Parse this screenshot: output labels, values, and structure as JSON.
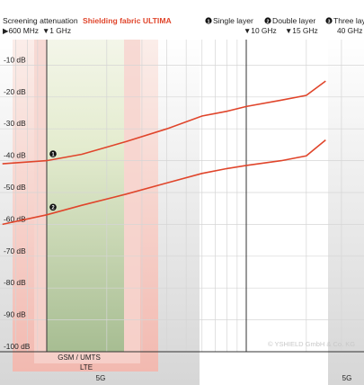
{
  "header": {
    "title_prefix": "Screening attenuation",
    "title_product": "Shielding fabric ULTIMA",
    "legend_single": "Single layer",
    "legend_double": "Double layer",
    "legend_three": "Three laye",
    "legend_marker_1": "1",
    "legend_marker_2": "2",
    "legend_marker_3": "3"
  },
  "frequency_markers": [
    {
      "label": "600 MHz",
      "freq_mhz": 600,
      "glyph": "▶"
    },
    {
      "label": "1 GHz",
      "freq_mhz": 1000,
      "glyph": "▼"
    },
    {
      "label": "10 GHz",
      "freq_mhz": 10000,
      "glyph": "▼"
    },
    {
      "label": "15 GHz",
      "freq_mhz": 15000,
      "glyph": "▼"
    },
    {
      "label": "40 GHz",
      "freq_mhz": 40000,
      "glyph": ""
    }
  ],
  "bands": [
    {
      "label": "GSM / UMTS",
      "color": "#f4c8c2"
    },
    {
      "label": "LTE",
      "color": "#b6c9a0"
    },
    {
      "label": "5G",
      "color": "#dcdcdc"
    },
    {
      "label": "5G",
      "color": "#dcdcdc"
    }
  ],
  "watermark": "© YSHIELD GmbH & Co. KG",
  "colors": {
    "curve": "#e0452b",
    "title_accent": "#e0452b",
    "grid": "#d5d5d5",
    "axis": "#333333"
  },
  "chart_data": {
    "type": "line",
    "title": "Screening attenuation Shielding fabric ULTIMA",
    "x_scale": "log",
    "x_unit": "MHz",
    "xlim": [
      600,
      40000
    ],
    "ylim": [
      -100,
      0
    ],
    "y_ticks": [
      "-10 dB",
      "-20 dB",
      "-30 dB",
      "-40 dB",
      "-50 dB",
      "-60 dB",
      "-70 dB",
      "-80 dB",
      "-90 dB",
      "-100 dB"
    ],
    "y_tick_values": [
      -10,
      -20,
      -30,
      -40,
      -50,
      -60,
      -70,
      -80,
      -90,
      -100
    ],
    "grid": true,
    "series": [
      {
        "name": "Single layer",
        "marker": "1",
        "x": [
          600,
          1000,
          1500,
          2500,
          4000,
          6000,
          8000,
          10000,
          15000,
          20000,
          25000
        ],
        "y": [
          -41,
          -40,
          -38,
          -34,
          -30,
          -26,
          -24.5,
          -23,
          -21,
          -19.5,
          -15
        ]
      },
      {
        "name": "Double layer",
        "marker": "2",
        "x": [
          600,
          1000,
          1500,
          2500,
          4000,
          6000,
          8000,
          10000,
          15000,
          20000,
          25000
        ],
        "y": [
          -60,
          -57,
          -54,
          -50.5,
          -47,
          -44,
          -42.5,
          -41.5,
          -40,
          -38.5,
          -33.5
        ]
      }
    ]
  }
}
